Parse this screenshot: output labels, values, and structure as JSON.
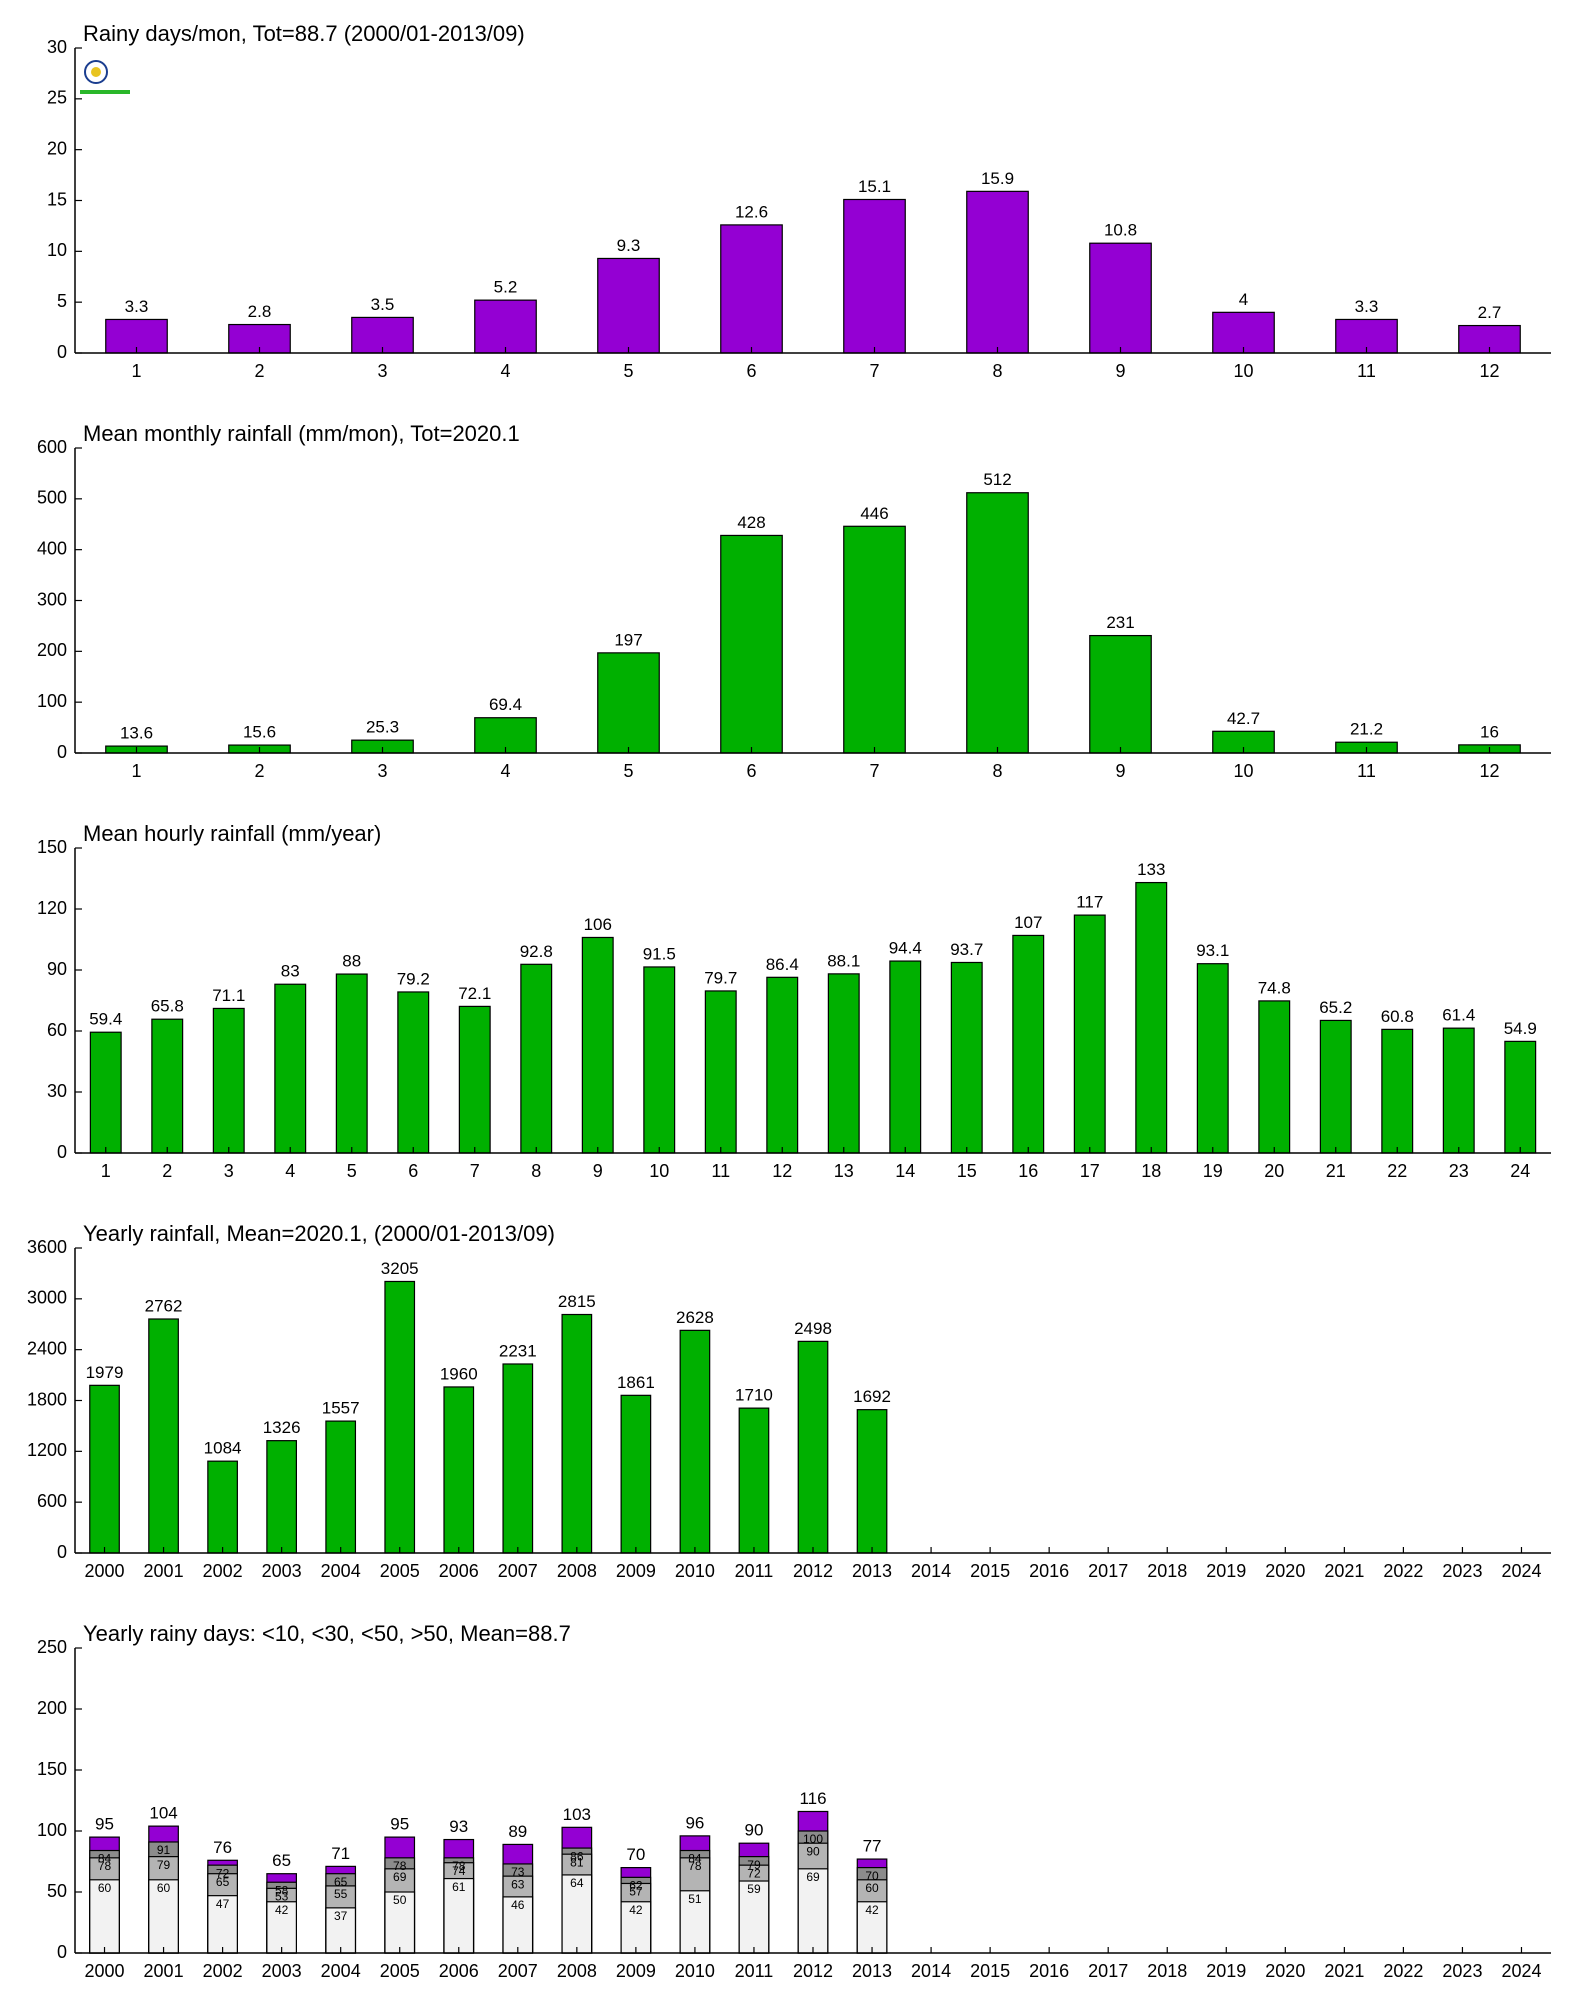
{
  "chart_data": [
    {
      "type": "bar",
      "title": "Rainy days/mon, Tot=88.7 (2000/01-2013/09)",
      "categories": [
        "1",
        "2",
        "3",
        "4",
        "5",
        "6",
        "7",
        "8",
        "9",
        "10",
        "11",
        "12"
      ],
      "values": [
        3.3,
        2.8,
        3.5,
        5.2,
        9.3,
        12.6,
        15.1,
        15.9,
        10.8,
        4,
        3.3,
        2.7
      ],
      "color": "#9400d3",
      "ylim": [
        0,
        30
      ],
      "yticks": [
        0,
        5,
        10,
        15,
        20,
        25,
        30
      ]
    },
    {
      "type": "bar",
      "title": "Mean monthly rainfall (mm/mon), Tot=2020.1",
      "categories": [
        "1",
        "2",
        "3",
        "4",
        "5",
        "6",
        "7",
        "8",
        "9",
        "10",
        "11",
        "12"
      ],
      "values": [
        13.6,
        15.6,
        25.3,
        69.4,
        197,
        428,
        446,
        512,
        231,
        42.7,
        21.2,
        16
      ],
      "color": "#00b000",
      "ylim": [
        0,
        600
      ],
      "yticks": [
        0,
        100,
        200,
        300,
        400,
        500,
        600
      ]
    },
    {
      "type": "bar",
      "title": "Mean hourly rainfall (mm/year)",
      "categories": [
        "1",
        "2",
        "3",
        "4",
        "5",
        "6",
        "7",
        "8",
        "9",
        "10",
        "11",
        "12",
        "13",
        "14",
        "15",
        "16",
        "17",
        "18",
        "19",
        "20",
        "21",
        "22",
        "23",
        "24"
      ],
      "values": [
        59.4,
        65.8,
        71.1,
        83,
        88,
        79.2,
        72.1,
        92.8,
        106,
        91.5,
        79.7,
        86.4,
        88.1,
        94.4,
        93.7,
        107,
        117,
        133,
        93.1,
        74.8,
        65.2,
        60.8,
        61.4,
        54.9
      ],
      "color": "#00b000",
      "ylim": [
        0,
        150
      ],
      "yticks": [
        0,
        30,
        60,
        90,
        120,
        150
      ]
    },
    {
      "type": "bar",
      "title": "Yearly rainfall, Mean=2020.1, (2000/01-2013/09)",
      "categories": [
        "2000",
        "2001",
        "2002",
        "2003",
        "2004",
        "2005",
        "2006",
        "2007",
        "2008",
        "2009",
        "2010",
        "2011",
        "2012",
        "2013",
        "2014",
        "2015",
        "2016",
        "2017",
        "2018",
        "2019",
        "2020",
        "2021",
        "2022",
        "2023",
        "2024"
      ],
      "values": [
        1979,
        2762,
        1084,
        1326,
        1557,
        3205,
        1960,
        2231,
        2815,
        1861,
        2628,
        1710,
        2498,
        1692,
        null,
        null,
        null,
        null,
        null,
        null,
        null,
        null,
        null,
        null,
        null
      ],
      "color": "#00b000",
      "ylim": [
        0,
        3600
      ],
      "yticks": [
        0,
        600,
        1200,
        1800,
        2400,
        3000,
        3600
      ]
    },
    {
      "type": "bar",
      "title": "Yearly rainy days: <10, <30, <50, >50, Mean=88.7",
      "categories": [
        "2000",
        "2001",
        "2002",
        "2003",
        "2004",
        "2005",
        "2006",
        "2007",
        "2008",
        "2009",
        "2010",
        "2011",
        "2012",
        "2013",
        "2014",
        "2015",
        "2016",
        "2017",
        "2018",
        "2019",
        "2020",
        "2021",
        "2022",
        "2023",
        "2024"
      ],
      "series": [
        {
          "color": "#f2f2f2",
          "values": [
            60,
            60,
            47,
            42,
            37,
            50,
            61,
            46,
            64,
            42,
            51,
            59,
            69,
            42,
            null,
            null,
            null,
            null,
            null,
            null,
            null,
            null,
            null,
            null,
            null
          ]
        },
        {
          "color": "#b4b4b4",
          "values": [
            78,
            79,
            65,
            53,
            55,
            69,
            74,
            63,
            81,
            57,
            78,
            72,
            90,
            60,
            null,
            null,
            null,
            null,
            null,
            null,
            null,
            null,
            null,
            null,
            null
          ]
        },
        {
          "color": "#8c8c8c",
          "values": [
            84,
            91,
            72,
            58,
            65,
            78,
            78,
            73,
            86,
            62,
            84,
            79,
            100,
            70,
            null,
            null,
            null,
            null,
            null,
            null,
            null,
            null,
            null,
            null,
            null
          ]
        },
        {
          "color": "#9400d3",
          "values": [
            95,
            104,
            76,
            65,
            71,
            95,
            93,
            89,
            103,
            70,
            96,
            90,
            116,
            77,
            null,
            null,
            null,
            null,
            null,
            null,
            null,
            null,
            null,
            null,
            null
          ]
        }
      ],
      "ylim": [
        0,
        250
      ],
      "yticks": [
        0,
        50,
        100,
        150,
        200,
        250
      ]
    }
  ]
}
